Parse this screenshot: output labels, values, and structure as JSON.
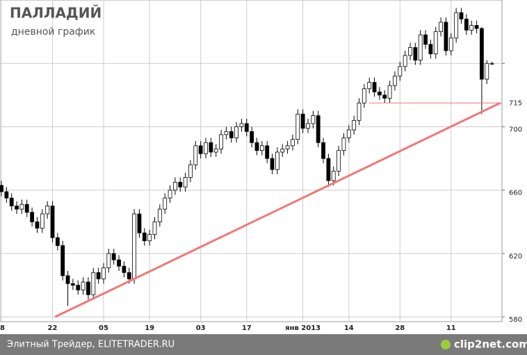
{
  "chart_data": {
    "type": "candlestick",
    "title": "ПАЛЛАДИЙ",
    "subtitle": "дневной график",
    "source": "Элитный Трейдер, ELITETRADER.RU",
    "watermark": "clip2net.com",
    "categories": [
      "8",
      null,
      null,
      null,
      null,
      null,
      null,
      null,
      null,
      null,
      "22",
      null,
      null,
      null,
      null,
      null,
      null,
      null,
      null,
      null,
      "05",
      null,
      null,
      null,
      null,
      null,
      null,
      null,
      null,
      "19",
      null,
      null,
      null,
      null,
      null,
      null,
      null,
      null,
      null,
      "03",
      null,
      null,
      null,
      null,
      null,
      null,
      null,
      null,
      "17",
      null,
      null,
      null,
      null,
      null,
      null,
      null,
      null,
      null,
      null,
      "янв 2013",
      null,
      null,
      null,
      null,
      null,
      null,
      null,
      null,
      "14",
      null,
      null,
      null,
      null,
      null,
      null,
      null,
      null,
      null,
      "28",
      null,
      null,
      null,
      null,
      null,
      null,
      null,
      null,
      null,
      "11",
      null,
      null,
      null,
      null,
      null,
      null,
      null,
      null
    ],
    "open": [
      663,
      659,
      655,
      650,
      648,
      651,
      646,
      640,
      636,
      645,
      650,
      630,
      625,
      606,
      601,
      600,
      597,
      602,
      594,
      608,
      604,
      611,
      620,
      616,
      612,
      608,
      604,
      645,
      633,
      628,
      632,
      640,
      648,
      655,
      660,
      665,
      662,
      668,
      676,
      688,
      683,
      690,
      684,
      686,
      695,
      697,
      693,
      700,
      702,
      697,
      690,
      685,
      688,
      680,
      673,
      684,
      686,
      688,
      692,
      708,
      699,
      702,
      707,
      690,
      680,
      666,
      672,
      685,
      693,
      698,
      704,
      715,
      724,
      728,
      722,
      720,
      718,
      726,
      732,
      738,
      745,
      750,
      742,
      758,
      752,
      746,
      760,
      766,
      748,
      756,
      772,
      768,
      761,
      764,
      762,
      730,
      740
    ],
    "high": [
      666,
      662,
      658,
      653,
      654,
      654,
      649,
      643,
      648,
      653,
      653,
      633,
      628,
      609,
      604,
      603,
      605,
      605,
      611,
      611,
      614,
      623,
      623,
      619,
      615,
      611,
      648,
      648,
      636,
      635,
      643,
      651,
      658,
      663,
      668,
      668,
      671,
      679,
      691,
      691,
      693,
      693,
      689,
      698,
      700,
      700,
      703,
      705,
      705,
      700,
      693,
      691,
      691,
      683,
      687,
      689,
      691,
      695,
      711,
      711,
      705,
      710,
      710,
      693,
      683,
      675,
      688,
      696,
      701,
      707,
      718,
      727,
      731,
      731,
      725,
      723,
      729,
      735,
      741,
      748,
      753,
      753,
      761,
      761,
      755,
      763,
      769,
      769,
      759,
      775,
      775,
      771,
      767,
      767,
      763,
      742,
      741
    ],
    "low": [
      656,
      652,
      647,
      645,
      645,
      643,
      637,
      633,
      633,
      642,
      627,
      622,
      603,
      587,
      597,
      594,
      594,
      591,
      591,
      601,
      601,
      608,
      613,
      609,
      605,
      601,
      601,
      630,
      625,
      625,
      629,
      637,
      645,
      652,
      657,
      659,
      659,
      665,
      673,
      680,
      680,
      681,
      681,
      683,
      692,
      690,
      690,
      697,
      694,
      687,
      682,
      682,
      677,
      670,
      670,
      681,
      683,
      685,
      689,
      696,
      696,
      699,
      687,
      677,
      662,
      663,
      669,
      682,
      690,
      695,
      701,
      712,
      721,
      719,
      717,
      715,
      715,
      723,
      729,
      735,
      742,
      739,
      739,
      749,
      743,
      743,
      757,
      745,
      745,
      753,
      765,
      758,
      758,
      759,
      708,
      727,
      739
    ],
    "close": [
      659,
      655,
      650,
      648,
      651,
      646,
      640,
      636,
      645,
      650,
      630,
      625,
      606,
      601,
      600,
      597,
      602,
      594,
      608,
      604,
      611,
      620,
      616,
      612,
      608,
      604,
      645,
      633,
      628,
      632,
      640,
      648,
      655,
      660,
      665,
      662,
      668,
      676,
      688,
      683,
      690,
      684,
      686,
      695,
      697,
      693,
      700,
      702,
      697,
      690,
      685,
      688,
      680,
      673,
      684,
      686,
      688,
      692,
      708,
      699,
      702,
      707,
      690,
      680,
      666,
      672,
      685,
      693,
      698,
      704,
      715,
      724,
      728,
      722,
      720,
      718,
      726,
      732,
      738,
      745,
      750,
      742,
      758,
      752,
      746,
      760,
      766,
      748,
      756,
      772,
      768,
      761,
      764,
      762,
      730,
      740,
      740
    ],
    "up_color": "#ffffff",
    "down_color": "#000000",
    "ylim": [
      577,
      780
    ],
    "yticks": [
      580,
      620,
      660,
      700,
      {
        "value": 740,
        "label": null
      }
    ],
    "grid": true,
    "trendline": {
      "color": "#f07878",
      "start": [
        10.5,
        580
      ],
      "end": [
        97.6,
        715
      ]
    },
    "level": {
      "value": 715,
      "from": 72,
      "color": "#f07878"
    }
  }
}
